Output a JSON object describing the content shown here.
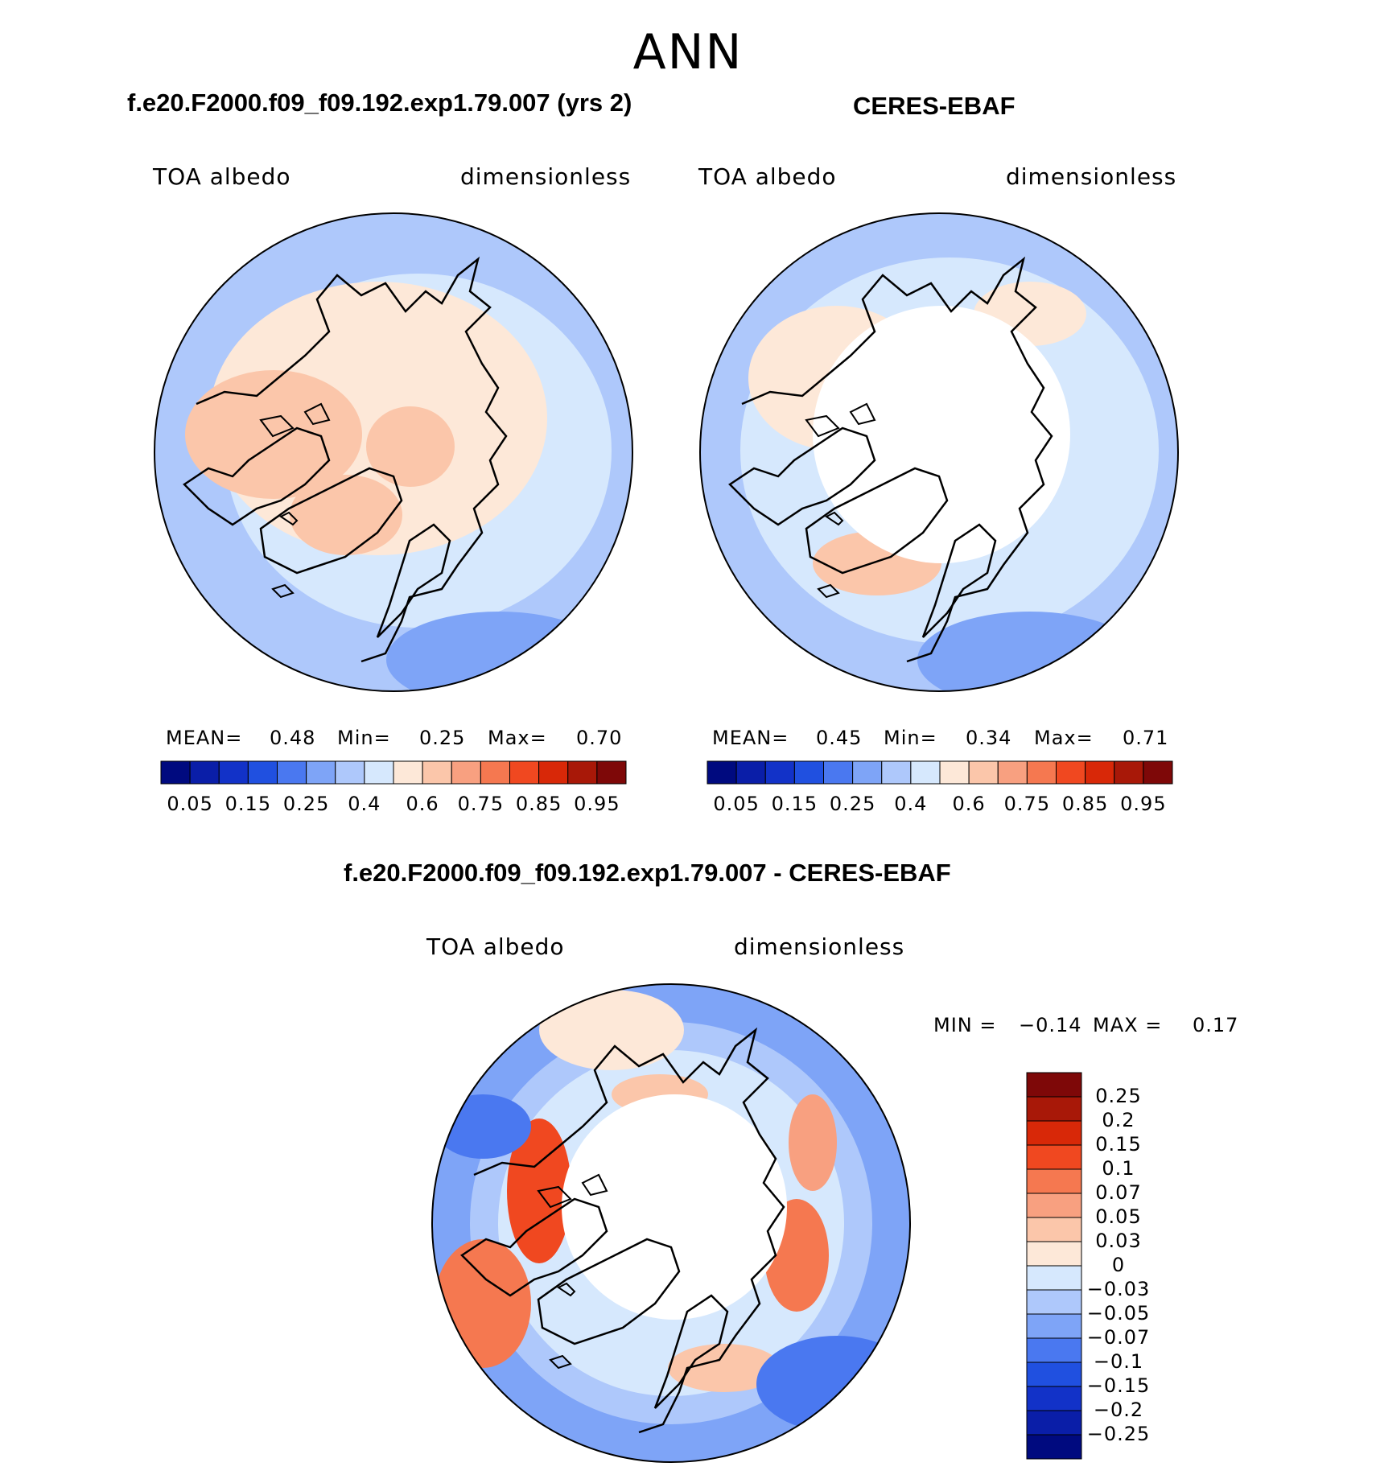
{
  "page": {
    "season": "ANN"
  },
  "panels": [
    {
      "title": "f.e20.F2000.f09_f09.192.exp1.79.007 (yrs 2)",
      "variable": "TOA albedo",
      "units": "dimensionless",
      "mean_label": "MEAN=",
      "mean": "0.48",
      "min_label": "Min=",
      "min": "0.25",
      "max_label": "Max=",
      "max": "0.70"
    },
    {
      "title": "CERES-EBAF",
      "variable": "TOA albedo",
      "units": "dimensionless",
      "mean_label": "MEAN=",
      "mean": "0.45",
      "min_label": "Min=",
      "min": "0.34",
      "max_label": "Max=",
      "max": "0.71"
    }
  ],
  "difference": {
    "title": "f.e20.F2000.f09_f09.192.exp1.79.007 - CERES-EBAF",
    "variable": "TOA albedo",
    "units": "dimensionless",
    "min_label": "MIN =",
    "min": "−0.14",
    "max_label": "MAX =",
    "max": "0.17"
  },
  "colorbar_abs": {
    "colors": [
      "#000a7f",
      "#0a1ea8",
      "#1232c8",
      "#2050e0",
      "#4a78f0",
      "#7ea4f7",
      "#aec8fb",
      "#d6e8fd",
      "#fde8d8",
      "#fbc6aa",
      "#f8a080",
      "#f57850",
      "#f04820",
      "#d82808",
      "#a81808",
      "#7e0808"
    ],
    "tick_labels": [
      "0.05",
      "0.15",
      "0.25",
      "0.4",
      "0.6",
      "0.75",
      "0.85",
      "0.95"
    ]
  },
  "colorbar_diff": {
    "colors": [
      "#000a7f",
      "#0a1ea8",
      "#1232c8",
      "#2050e0",
      "#4a78f0",
      "#7ea4f7",
      "#aec8fb",
      "#d6e8fd",
      "#fde8d8",
      "#fbc6aa",
      "#f8a080",
      "#f57850",
      "#f04820",
      "#d82808",
      "#a81808",
      "#7e0808"
    ],
    "tick_labels": [
      "0.25",
      "0.2",
      "0.15",
      "0.1",
      "0.07",
      "0.05",
      "0.03",
      "0",
      "−0.03",
      "−0.05",
      "−0.07",
      "−0.1",
      "−0.15",
      "−0.2",
      "−0.25"
    ]
  }
}
